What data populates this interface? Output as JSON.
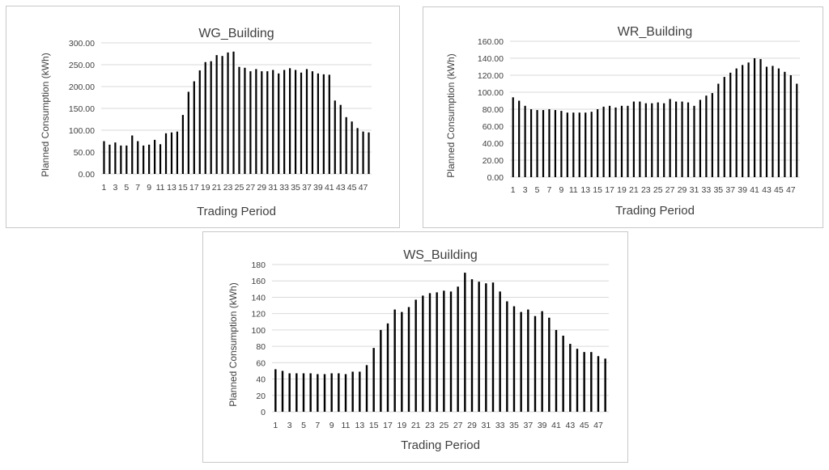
{
  "chart_data": [
    {
      "type": "bar",
      "title": "WG_Building",
      "xlabel": "Trading Period",
      "ylabel": "Planned Consumption (kWh)",
      "ylim": [
        0,
        300
      ],
      "yticks": [
        "0.00",
        "50.00",
        "100.00",
        "150.00",
        "200.00",
        "250.00",
        "300.00"
      ],
      "grid": true,
      "legend": "none",
      "xtick_labels": [
        "1",
        "3",
        "5",
        "7",
        "9",
        "11",
        "13",
        "15",
        "17",
        "19",
        "21",
        "23",
        "25",
        "27",
        "29",
        "31",
        "33",
        "35",
        "37",
        "39",
        "41",
        "43",
        "45",
        "47"
      ],
      "categories": [
        1,
        2,
        3,
        4,
        5,
        6,
        7,
        8,
        9,
        10,
        11,
        12,
        13,
        14,
        15,
        16,
        17,
        18,
        19,
        20,
        21,
        22,
        23,
        24,
        25,
        26,
        27,
        28,
        29,
        30,
        31,
        32,
        33,
        34,
        35,
        36,
        37,
        38,
        39,
        40,
        41,
        42,
        43,
        44,
        45,
        46,
        47,
        48
      ],
      "values": [
        75,
        67,
        72,
        65,
        65,
        88,
        75,
        65,
        67,
        78,
        68,
        93,
        95,
        97,
        135,
        188,
        212,
        237,
        256,
        258,
        272,
        270,
        278,
        280,
        245,
        243,
        235,
        240,
        235,
        235,
        238,
        230,
        238,
        242,
        238,
        232,
        240,
        235,
        230,
        228,
        227,
        168,
        158,
        130,
        120,
        105,
        97,
        95
      ]
    },
    {
      "type": "bar",
      "title": "WR_Building",
      "xlabel": "Trading Period",
      "ylabel": "Planned Consumption (kWh)",
      "ylim": [
        0,
        160
      ],
      "yticks": [
        "0.00",
        "20.00",
        "40.00",
        "60.00",
        "80.00",
        "100.00",
        "120.00",
        "140.00",
        "160.00"
      ],
      "grid": true,
      "legend": "none",
      "xtick_labels": [
        "1",
        "3",
        "5",
        "7",
        "9",
        "11",
        "13",
        "15",
        "17",
        "19",
        "21",
        "23",
        "25",
        "27",
        "29",
        "31",
        "33",
        "35",
        "37",
        "39",
        "41",
        "43",
        "45",
        "47"
      ],
      "categories": [
        1,
        2,
        3,
        4,
        5,
        6,
        7,
        8,
        9,
        10,
        11,
        12,
        13,
        14,
        15,
        16,
        17,
        18,
        19,
        20,
        21,
        22,
        23,
        24,
        25,
        26,
        27,
        28,
        29,
        30,
        31,
        32,
        33,
        34,
        35,
        36,
        37,
        38,
        39,
        40,
        41,
        42,
        43,
        44,
        45,
        46,
        47,
        48
      ],
      "values": [
        94,
        90,
        84,
        80,
        79,
        79,
        80,
        79,
        78,
        76,
        76,
        76,
        76,
        77,
        80,
        83,
        84,
        82,
        84,
        84,
        89,
        89,
        87,
        87,
        88,
        87,
        92,
        89,
        89,
        88,
        84,
        91,
        96,
        99,
        110,
        118,
        123,
        128,
        132,
        135,
        140,
        139,
        130,
        131,
        128,
        124,
        120,
        110
      ]
    },
    {
      "type": "bar",
      "title": "WS_Building",
      "xlabel": "Trading Period",
      "ylabel": "Planned Consumption (kWh)",
      "ylim": [
        0,
        180
      ],
      "yticks": [
        "0",
        "20",
        "40",
        "60",
        "80",
        "100",
        "120",
        "140",
        "160",
        "180"
      ],
      "grid": true,
      "legend": "none",
      "xtick_labels": [
        "1",
        "3",
        "5",
        "7",
        "9",
        "11",
        "13",
        "15",
        "17",
        "19",
        "21",
        "23",
        "25",
        "27",
        "29",
        "31",
        "33",
        "35",
        "37",
        "39",
        "41",
        "43",
        "45",
        "47"
      ],
      "categories": [
        1,
        2,
        3,
        4,
        5,
        6,
        7,
        8,
        9,
        10,
        11,
        12,
        13,
        14,
        15,
        16,
        17,
        18,
        19,
        20,
        21,
        22,
        23,
        24,
        25,
        26,
        27,
        28,
        29,
        30,
        31,
        32,
        33,
        34,
        35,
        36,
        37,
        38,
        39,
        40,
        41,
        42,
        43,
        44,
        45,
        46,
        47,
        48
      ],
      "values": [
        52,
        50,
        47,
        47,
        47,
        47,
        46,
        46,
        47,
        47,
        46,
        49,
        49,
        57,
        78,
        100,
        108,
        125,
        122,
        128,
        137,
        142,
        145,
        146,
        148,
        147,
        153,
        170,
        162,
        159,
        157,
        158,
        147,
        135,
        129,
        122,
        125,
        117,
        123,
        115,
        100,
        93,
        83,
        77,
        73,
        73,
        68,
        65
      ]
    }
  ]
}
